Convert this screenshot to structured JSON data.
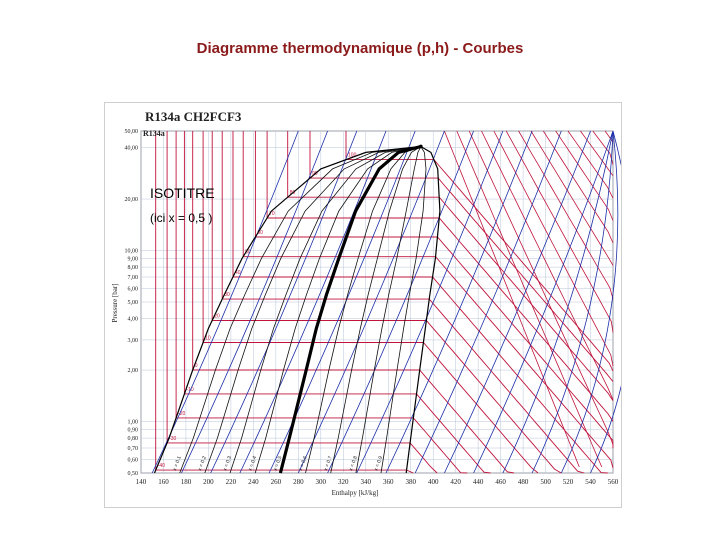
{
  "slide": {
    "title": "Diagramme thermodynamique (p,h) - Courbes"
  },
  "annotation": {
    "title": "ISOTITRE",
    "subtitle": "(ici x = 0,5 )"
  },
  "chart_data": {
    "type": "line",
    "title": "R134a    CH2FCF3",
    "subtitle": "R134a",
    "xlabel": "Enthalpy [kJ/kg]",
    "ylabel": "Pressure [bar]",
    "x_ticks": [
      140,
      160,
      180,
      200,
      220,
      240,
      260,
      280,
      300,
      320,
      340,
      360,
      380,
      400,
      420,
      440,
      460,
      480,
      500,
      520,
      540,
      560
    ],
    "y_ticks": [
      0.5,
      0.6,
      0.7,
      0.8,
      0.9,
      1.0,
      2.0,
      3.0,
      4.0,
      5.0,
      6.0,
      7.0,
      8.0,
      9.0,
      10.0,
      20.0,
      40.0,
      50.0
    ],
    "y_tick_labels": [
      "0,50",
      "0,60",
      "0,70",
      "0,80",
      "0,90",
      "1,00",
      "2,00",
      "3,00",
      "4,00",
      "5,00",
      "6,00",
      "7,00",
      "8,00",
      "9,00",
      "10,00",
      "20,00",
      "40,00",
      "50,00"
    ],
    "xlim": [
      140,
      560
    ],
    "ylim": [
      0.5,
      50
    ],
    "yscale": "log",
    "grid": true,
    "colors": {
      "saturation": "#000000",
      "isotherms": "#c0143c",
      "isentropes": "#1c2fa8",
      "quality_lines": "#111111",
      "highlight": "#000000",
      "grid": "#b9c4d8"
    },
    "critical_point": {
      "h": 389,
      "p": 40.6
    },
    "highlighted_quality": 0.5,
    "quality_lines": [
      0.1,
      0.2,
      0.3,
      0.4,
      0.5,
      0.6,
      0.7,
      0.8,
      0.9
    ],
    "series": [
      {
        "name": "saturation-liquid",
        "points": [
          [
            152,
            0.5
          ],
          [
            165,
            0.8
          ],
          [
            186,
            2.0
          ],
          [
            200,
            3.5
          ],
          [
            214,
            5.5
          ],
          [
            230,
            9.0
          ],
          [
            256,
            17.0
          ],
          [
            300,
            30.0
          ],
          [
            340,
            37.5
          ],
          [
            389,
            40.6
          ]
        ]
      },
      {
        "name": "saturation-vapor",
        "points": [
          [
            376,
            0.5
          ],
          [
            380,
            0.8
          ],
          [
            388,
            2.0
          ],
          [
            393,
            3.5
          ],
          [
            397,
            5.5
          ],
          [
            402,
            9.0
          ],
          [
            406,
            17.0
          ],
          [
            404,
            30.0
          ],
          [
            398,
            37.5
          ],
          [
            389,
            40.6
          ]
        ]
      },
      {
        "name": "isotitre-x-0.5",
        "points": [
          [
            264,
            0.5
          ],
          [
            272,
            0.8
          ],
          [
            287,
            2.0
          ],
          [
            296,
            3.5
          ],
          [
            305,
            5.5
          ],
          [
            316,
            9.0
          ],
          [
            331,
            17.0
          ],
          [
            352,
            30.0
          ],
          [
            369,
            37.5
          ],
          [
            389,
            40.6
          ]
        ]
      }
    ],
    "isotherm_labels": [
      "-40",
      "-30",
      "-20",
      "-10",
      "0",
      "10",
      "20",
      "30",
      "40",
      "50",
      "60",
      "70",
      "80",
      "90",
      "100"
    ],
    "quality_labels": [
      "x = 0,1",
      "x = 0,2",
      "x = 0,3",
      "x = 0,4",
      "x = 0,5",
      "x = 0,6",
      "x = 0,7",
      "x = 0,8",
      "x = 0,9"
    ]
  }
}
